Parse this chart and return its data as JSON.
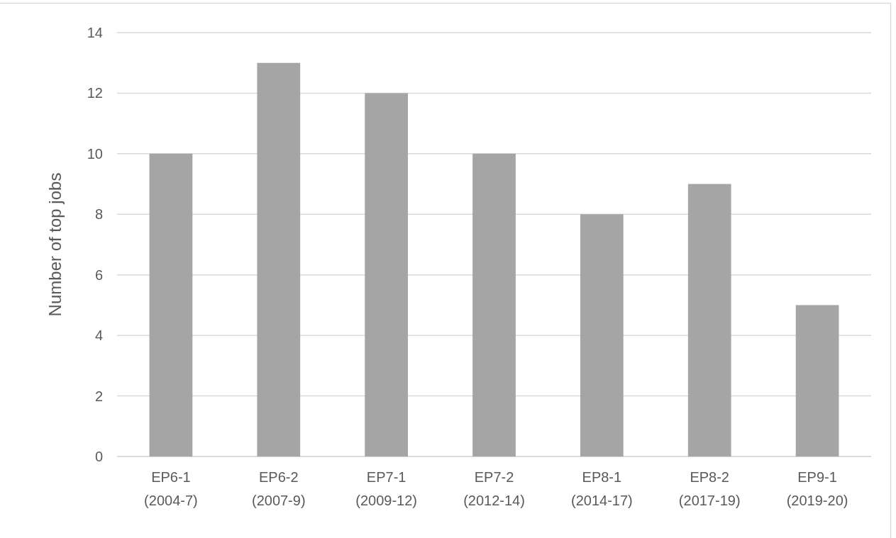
{
  "chart_data": {
    "type": "bar",
    "ylabel": "Number of top jobs",
    "categories": [
      "EP6-1 (2004-7)",
      "EP6-2 (2007-9)",
      "EP7-1 (2009-12)",
      "EP7-2 (2012-14)",
      "EP8-1 (2014-17)",
      "EP8-2 (2017-19)",
      "EP9-1 (2019-20)"
    ],
    "values": [
      10,
      13,
      12,
      10,
      8,
      9,
      5
    ],
    "color": "#a5a5a5",
    "ylim": [
      0,
      14
    ],
    "yticks": [
      0,
      2,
      4,
      6,
      8,
      10,
      12,
      14
    ],
    "grid": "y"
  }
}
